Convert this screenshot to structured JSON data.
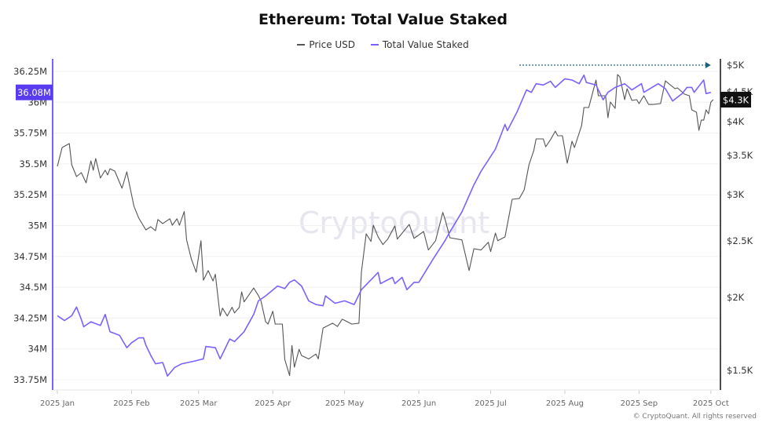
{
  "chart_data": {
    "type": "line",
    "title": "Ethereum: Total Value Staked",
    "legend_position": "top",
    "grid": true,
    "x_ticks": [
      "2025 Jan",
      "2025 Feb",
      "2025 Mar",
      "2025 Apr",
      "2025 May",
      "2025 Jun",
      "2025 Jul",
      "2025 Aug",
      "2025 Sep",
      "2025 Oct"
    ],
    "x_tick_dates": [
      "2025-01-01",
      "2025-02-01",
      "2025-03-01",
      "2025-04-01",
      "2025-05-01",
      "2025-06-01",
      "2025-07-01",
      "2025-08-01",
      "2025-09-01",
      "2025-10-01"
    ],
    "y_left": {
      "scale": "linear",
      "range": [
        33.7,
        36.35
      ],
      "ticks": [
        "36.25M",
        "36M",
        "35.75M",
        "35.5M",
        "35.25M",
        "35M",
        "34.75M",
        "34.5M",
        "34.25M",
        "34M",
        "33.75M"
      ],
      "tick_values": [
        36.25,
        36,
        35.75,
        35.5,
        35.25,
        35,
        34.75,
        34.5,
        34.25,
        34,
        33.75
      ],
      "current_label": "36.08M",
      "color": "#7b61ff"
    },
    "y_right": {
      "scale": "log",
      "range": [
        1400,
        5200
      ],
      "ticks": [
        "$5K",
        "$4.5K",
        "$4K",
        "$3.5K",
        "$3K",
        "$2.5K",
        "$2K",
        "$1.5K"
      ],
      "tick_values": [
        5000,
        4500,
        4000,
        3500,
        3000,
        2500,
        2000,
        1500
      ],
      "current_label": "$4.3K",
      "color": "#111111"
    },
    "series": [
      {
        "name": "Price USD",
        "axis": "right",
        "color": "#555555",
        "points": [
          [
            "2025-01-01",
            3354
          ],
          [
            "2025-01-03",
            3612
          ],
          [
            "2025-01-06",
            3669
          ],
          [
            "2025-01-07",
            3374
          ],
          [
            "2025-01-09",
            3221
          ],
          [
            "2025-01-11",
            3272
          ],
          [
            "2025-01-13",
            3143
          ],
          [
            "2025-01-15",
            3427
          ],
          [
            "2025-01-16",
            3303
          ],
          [
            "2025-01-17",
            3459
          ],
          [
            "2025-01-19",
            3202
          ],
          [
            "2025-01-21",
            3303
          ],
          [
            "2025-01-22",
            3242
          ],
          [
            "2025-01-23",
            3322
          ],
          [
            "2025-01-25",
            3292
          ],
          [
            "2025-01-28",
            3076
          ],
          [
            "2025-01-30",
            3282
          ],
          [
            "2025-02-02",
            2866
          ],
          [
            "2025-02-04",
            2735
          ],
          [
            "2025-02-07",
            2610
          ],
          [
            "2025-02-09",
            2642
          ],
          [
            "2025-02-11",
            2602
          ],
          [
            "2025-02-12",
            2719
          ],
          [
            "2025-02-14",
            2676
          ],
          [
            "2025-02-17",
            2727
          ],
          [
            "2025-02-18",
            2659
          ],
          [
            "2025-02-20",
            2727
          ],
          [
            "2025-02-21",
            2659
          ],
          [
            "2025-02-23",
            2806
          ],
          [
            "2025-02-24",
            2509
          ],
          [
            "2025-02-26",
            2326
          ],
          [
            "2025-02-28",
            2209
          ],
          [
            "2025-03-02",
            2501
          ],
          [
            "2025-03-03",
            2140
          ],
          [
            "2025-03-05",
            2223
          ],
          [
            "2025-03-07",
            2134
          ],
          [
            "2025-03-08",
            2190
          ],
          [
            "2025-03-10",
            1858
          ],
          [
            "2025-03-11",
            1917
          ],
          [
            "2025-03-13",
            1858
          ],
          [
            "2025-03-15",
            1923
          ],
          [
            "2025-03-16",
            1881
          ],
          [
            "2025-03-18",
            1923
          ],
          [
            "2025-03-19",
            2044
          ],
          [
            "2025-03-20",
            1965
          ],
          [
            "2025-03-24",
            2075
          ],
          [
            "2025-03-26",
            2014
          ],
          [
            "2025-03-27",
            1976
          ],
          [
            "2025-03-29",
            1817
          ],
          [
            "2025-03-30",
            1800
          ],
          [
            "2025-04-01",
            1893
          ],
          [
            "2025-04-02",
            1800
          ],
          [
            "2025-04-05",
            1800
          ],
          [
            "2025-04-06",
            1565
          ],
          [
            "2025-04-08",
            1469
          ],
          [
            "2025-04-09",
            1654
          ],
          [
            "2025-04-10",
            1518
          ],
          [
            "2025-04-12",
            1629
          ],
          [
            "2025-04-13",
            1590
          ],
          [
            "2025-04-16",
            1569
          ],
          [
            "2025-04-19",
            1599
          ],
          [
            "2025-04-20",
            1569
          ],
          [
            "2025-04-22",
            1772
          ],
          [
            "2025-04-26",
            1806
          ],
          [
            "2025-04-28",
            1783
          ],
          [
            "2025-04-30",
            1835
          ],
          [
            "2025-05-04",
            1800
          ],
          [
            "2025-05-07",
            1806
          ],
          [
            "2025-05-08",
            2209
          ],
          [
            "2025-05-10",
            2570
          ],
          [
            "2025-05-12",
            2494
          ],
          [
            "2025-05-13",
            2659
          ],
          [
            "2025-05-15",
            2539
          ],
          [
            "2025-05-17",
            2463
          ],
          [
            "2025-05-19",
            2517
          ],
          [
            "2025-05-22",
            2651
          ],
          [
            "2025-05-23",
            2517
          ],
          [
            "2025-05-28",
            2667
          ],
          [
            "2025-05-30",
            2524
          ],
          [
            "2025-06-03",
            2594
          ],
          [
            "2025-06-05",
            2411
          ],
          [
            "2025-06-08",
            2501
          ],
          [
            "2025-06-11",
            2796
          ],
          [
            "2025-06-12",
            2719
          ],
          [
            "2025-06-14",
            2530
          ],
          [
            "2025-06-19",
            2509
          ],
          [
            "2025-06-22",
            2223
          ],
          [
            "2025-06-24",
            2423
          ],
          [
            "2025-06-27",
            2411
          ],
          [
            "2025-06-30",
            2486
          ],
          [
            "2025-07-01",
            2396
          ],
          [
            "2025-07-03",
            2578
          ],
          [
            "2025-07-04",
            2501
          ],
          [
            "2025-07-07",
            2539
          ],
          [
            "2025-07-10",
            2945
          ],
          [
            "2025-07-13",
            2955
          ],
          [
            "2025-07-15",
            3056
          ],
          [
            "2025-07-17",
            3374
          ],
          [
            "2025-07-19",
            3569
          ],
          [
            "2025-07-20",
            3737
          ],
          [
            "2025-07-23",
            3737
          ],
          [
            "2025-07-24",
            3623
          ],
          [
            "2025-07-26",
            3725
          ],
          [
            "2025-07-28",
            3854
          ],
          [
            "2025-07-29",
            3784
          ],
          [
            "2025-07-31",
            3784
          ],
          [
            "2025-08-02",
            3395
          ],
          [
            "2025-08-04",
            3703
          ],
          [
            "2025-08-05",
            3612
          ],
          [
            "2025-08-08",
            3940
          ],
          [
            "2025-08-09",
            4230
          ],
          [
            "2025-08-11",
            4230
          ],
          [
            "2025-08-14",
            4714
          ],
          [
            "2025-08-15",
            4431
          ],
          [
            "2025-08-18",
            4431
          ],
          [
            "2025-08-19",
            4064
          ],
          [
            "2025-08-20",
            4322
          ],
          [
            "2025-08-22",
            4216
          ],
          [
            "2025-08-23",
            4817
          ],
          [
            "2025-08-24",
            4773
          ],
          [
            "2025-08-26",
            4363
          ],
          [
            "2025-08-27",
            4557
          ],
          [
            "2025-08-29",
            4350
          ],
          [
            "2025-08-31",
            4363
          ],
          [
            "2025-09-01",
            4296
          ],
          [
            "2025-09-03",
            4431
          ],
          [
            "2025-09-05",
            4282
          ],
          [
            "2025-09-07",
            4282
          ],
          [
            "2025-09-10",
            4296
          ],
          [
            "2025-09-12",
            4699
          ],
          [
            "2025-09-16",
            4557
          ],
          [
            "2025-09-17",
            4571
          ],
          [
            "2025-09-20",
            4459
          ],
          [
            "2025-09-22",
            4431
          ],
          [
            "2025-09-23",
            4191
          ],
          [
            "2025-09-25",
            4152
          ],
          [
            "2025-09-26",
            3866
          ],
          [
            "2025-09-27",
            4025
          ],
          [
            "2025-09-28",
            4025
          ],
          [
            "2025-09-29",
            4191
          ],
          [
            "2025-09-30",
            4127
          ],
          [
            "2025-10-01",
            4322
          ],
          [
            "2025-10-02",
            4363
          ]
        ]
      },
      {
        "name": "Total Value Staked",
        "axis": "left",
        "color": "#7b61ff",
        "points": [
          [
            "2025-01-01",
            34.27
          ],
          [
            "2025-01-04",
            34.23
          ],
          [
            "2025-01-07",
            34.27
          ],
          [
            "2025-01-09",
            34.34
          ],
          [
            "2025-01-11",
            34.24
          ],
          [
            "2025-01-12",
            34.18
          ],
          [
            "2025-01-15",
            34.22
          ],
          [
            "2025-01-19",
            34.19
          ],
          [
            "2025-01-21",
            34.28
          ],
          [
            "2025-01-23",
            34.14
          ],
          [
            "2025-01-27",
            34.11
          ],
          [
            "2025-01-30",
            34.01
          ],
          [
            "2025-02-01",
            34.05
          ],
          [
            "2025-02-04",
            34.09
          ],
          [
            "2025-02-06",
            34.09
          ],
          [
            "2025-02-07",
            34.03
          ],
          [
            "2025-02-09",
            33.95
          ],
          [
            "2025-02-11",
            33.88
          ],
          [
            "2025-02-14",
            33.89
          ],
          [
            "2025-02-16",
            33.78
          ],
          [
            "2025-02-19",
            33.85
          ],
          [
            "2025-02-22",
            33.88
          ],
          [
            "2025-02-27",
            33.9
          ],
          [
            "2025-03-03",
            33.92
          ],
          [
            "2025-03-04",
            34.02
          ],
          [
            "2025-03-08",
            34.01
          ],
          [
            "2025-03-10",
            33.92
          ],
          [
            "2025-03-14",
            34.08
          ],
          [
            "2025-03-16",
            34.06
          ],
          [
            "2025-03-20",
            34.14
          ],
          [
            "2025-03-24",
            34.28
          ],
          [
            "2025-03-26",
            34.39
          ],
          [
            "2025-03-29",
            34.43
          ],
          [
            "2025-04-03",
            34.51
          ],
          [
            "2025-04-06",
            34.49
          ],
          [
            "2025-04-08",
            34.54
          ],
          [
            "2025-04-10",
            34.56
          ],
          [
            "2025-04-13",
            34.51
          ],
          [
            "2025-04-16",
            34.39
          ],
          [
            "2025-04-19",
            34.36
          ],
          [
            "2025-04-22",
            34.35
          ],
          [
            "2025-04-23",
            34.43
          ],
          [
            "2025-04-27",
            34.37
          ],
          [
            "2025-05-01",
            34.39
          ],
          [
            "2025-05-05",
            34.36
          ],
          [
            "2025-05-08",
            34.48
          ],
          [
            "2025-05-11",
            34.54
          ],
          [
            "2025-05-15",
            34.62
          ],
          [
            "2025-05-16",
            34.53
          ],
          [
            "2025-05-21",
            34.58
          ],
          [
            "2025-05-22",
            34.53
          ],
          [
            "2025-05-25",
            34.58
          ],
          [
            "2025-05-27",
            34.48
          ],
          [
            "2025-05-30",
            34.54
          ],
          [
            "2025-06-01",
            34.54
          ],
          [
            "2025-06-07",
            34.73
          ],
          [
            "2025-06-12",
            34.88
          ],
          [
            "2025-06-14",
            34.95
          ],
          [
            "2025-06-19",
            35.11
          ],
          [
            "2025-06-24",
            35.33
          ],
          [
            "2025-06-27",
            35.44
          ],
          [
            "2025-07-03",
            35.62
          ],
          [
            "2025-07-07",
            35.82
          ],
          [
            "2025-07-08",
            35.77
          ],
          [
            "2025-07-12",
            35.92
          ],
          [
            "2025-07-16",
            36.1
          ],
          [
            "2025-07-18",
            36.08
          ],
          [
            "2025-07-20",
            36.15
          ],
          [
            "2025-07-23",
            36.14
          ],
          [
            "2025-07-26",
            36.17
          ],
          [
            "2025-07-28",
            36.12
          ],
          [
            "2025-08-01",
            36.19
          ],
          [
            "2025-08-04",
            36.18
          ],
          [
            "2025-08-07",
            36.15
          ],
          [
            "2025-08-09",
            36.22
          ],
          [
            "2025-08-10",
            36.16
          ],
          [
            "2025-08-14",
            36.14
          ],
          [
            "2025-08-17",
            36.02
          ],
          [
            "2025-08-19",
            36.08
          ],
          [
            "2025-08-22",
            36.12
          ],
          [
            "2025-08-26",
            36.15
          ],
          [
            "2025-08-29",
            36.1
          ],
          [
            "2025-09-02",
            36.15
          ],
          [
            "2025-09-03",
            36.08
          ],
          [
            "2025-09-09",
            36.15
          ],
          [
            "2025-09-12",
            36.11
          ],
          [
            "2025-09-15",
            36.01
          ],
          [
            "2025-09-19",
            36.07
          ],
          [
            "2025-09-21",
            36.12
          ],
          [
            "2025-09-23",
            36.12
          ],
          [
            "2025-09-24",
            36.08
          ],
          [
            "2025-09-28",
            36.18
          ],
          [
            "2025-09-29",
            36.07
          ],
          [
            "2025-10-01",
            36.08
          ]
        ]
      }
    ],
    "annotation": {
      "type": "dotted-arrow",
      "axis": "right",
      "value": 5000,
      "from": "2025-07-13",
      "to": "2025-10-01",
      "color": "#1f5f7a"
    }
  },
  "watermark": "CryptoQuant",
  "footer": "© CryptoQuant. All rights reserved"
}
